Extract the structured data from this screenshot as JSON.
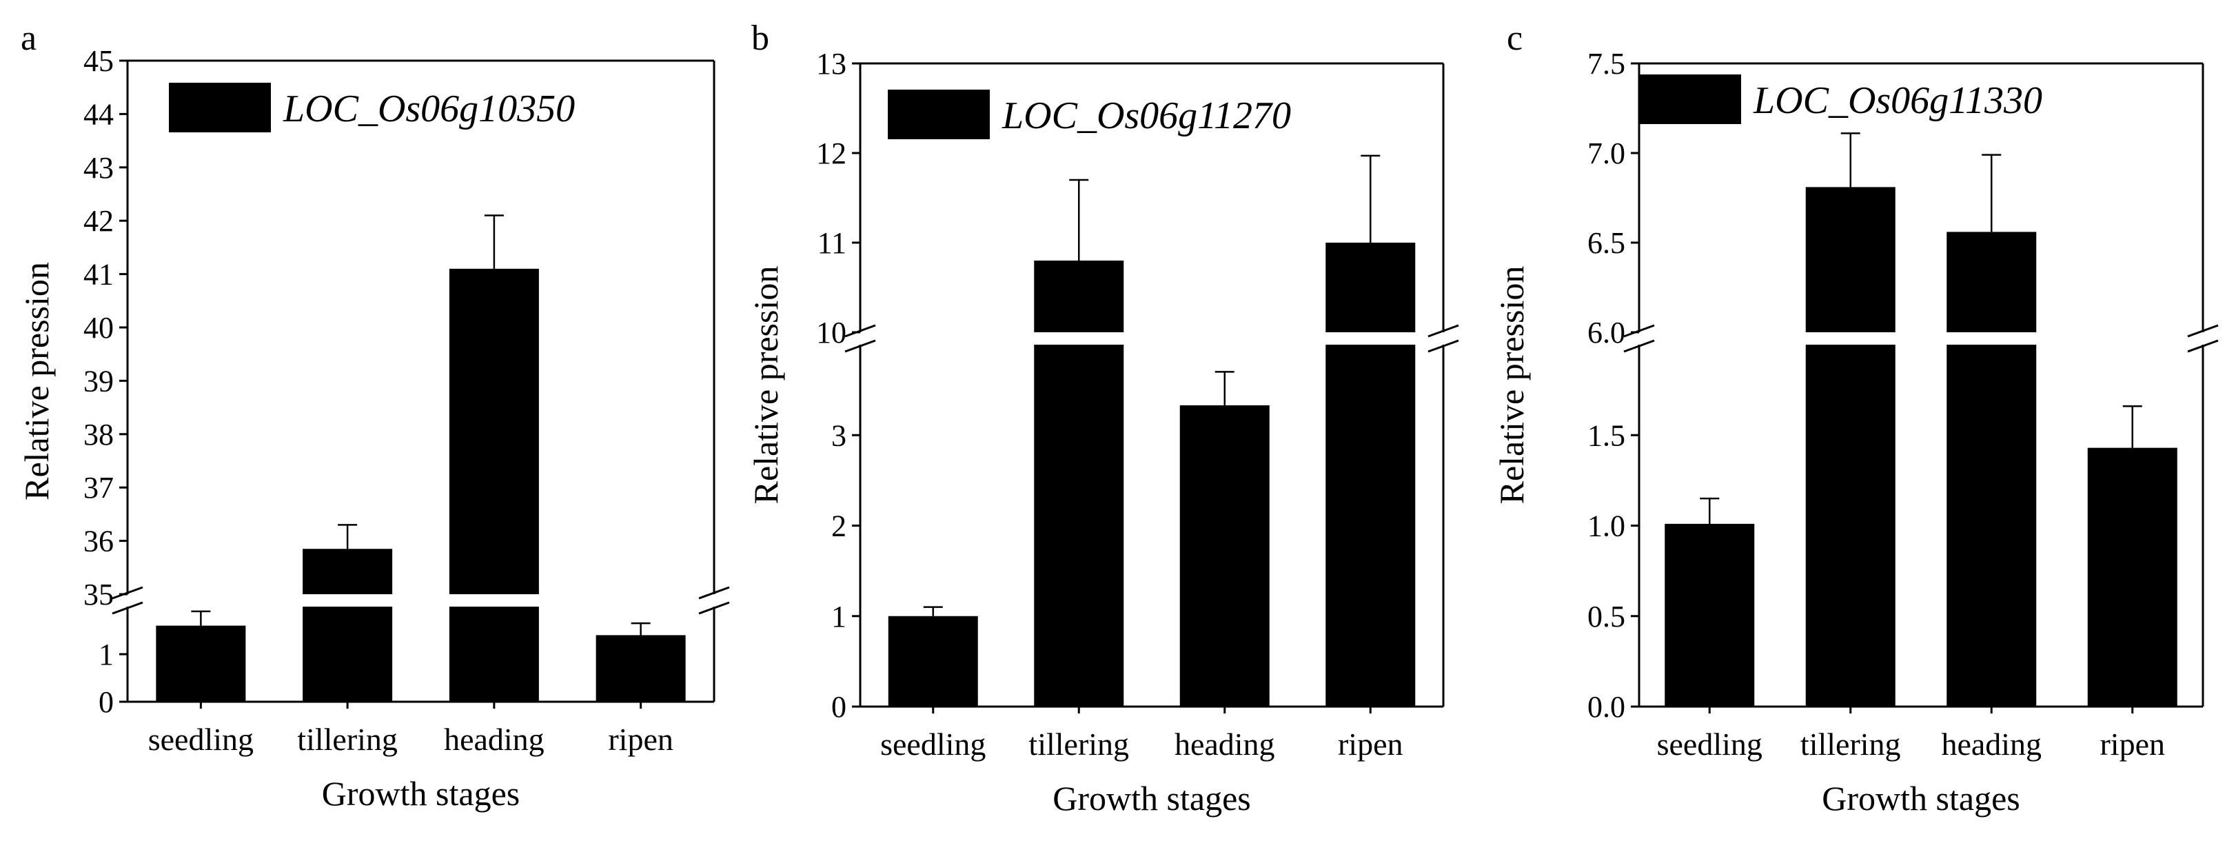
{
  "chart_data": [
    {
      "type": "bar",
      "panel_label": "a",
      "legend": "LOC_Os06g10350",
      "xlabel": "Growth stages",
      "ylabel": "Relative pression",
      "categories": [
        "seedling",
        "tillering",
        "heading",
        "ripen"
      ],
      "values": [
        1.6,
        35.85,
        41.1,
        1.4
      ],
      "errors": [
        0.3,
        0.45,
        1.0,
        0.25
      ],
      "axis_break": true,
      "lower_ylim": [
        0,
        2.0
      ],
      "lower_ticks": [
        "0",
        "1"
      ],
      "upper_ylim": [
        35,
        45
      ],
      "upper_ticks": [
        "35",
        "36",
        "37",
        "38",
        "39",
        "40",
        "41",
        "42",
        "43",
        "44",
        "45"
      ]
    },
    {
      "type": "bar",
      "panel_label": "b",
      "legend": "LOC_Os06g11270",
      "xlabel": "Growth stages",
      "ylabel": "Relative pression",
      "categories": [
        "seedling",
        "tillering",
        "heading",
        "ripen"
      ],
      "values": [
        1.0,
        10.8,
        3.33,
        11.0
      ],
      "errors": [
        0.1,
        0.9,
        0.37,
        0.97
      ],
      "axis_break": true,
      "lower_ylim": [
        0,
        4.0
      ],
      "lower_ticks": [
        "0",
        "1",
        "2",
        "3"
      ],
      "upper_ylim": [
        10,
        13
      ],
      "upper_ticks": [
        "10",
        "11",
        "12",
        "13"
      ]
    },
    {
      "type": "bar",
      "panel_label": "c",
      "legend": "LOC_Os06g11330",
      "xlabel": "Growth stages",
      "ylabel": "Relative pression",
      "categories": [
        "seedling",
        "tillering",
        "heading",
        "ripen"
      ],
      "values": [
        1.01,
        6.81,
        6.56,
        1.43
      ],
      "errors": [
        0.14,
        0.3,
        0.43,
        0.23
      ],
      "axis_break": true,
      "lower_ylim": [
        0,
        2.0
      ],
      "lower_ticks": [
        "0.0",
        "0.5",
        "1.0",
        "1.5"
      ],
      "upper_ylim": [
        6.0,
        7.5
      ],
      "upper_ticks": [
        "6.0",
        "6.5",
        "7.0",
        "7.5"
      ]
    }
  ]
}
